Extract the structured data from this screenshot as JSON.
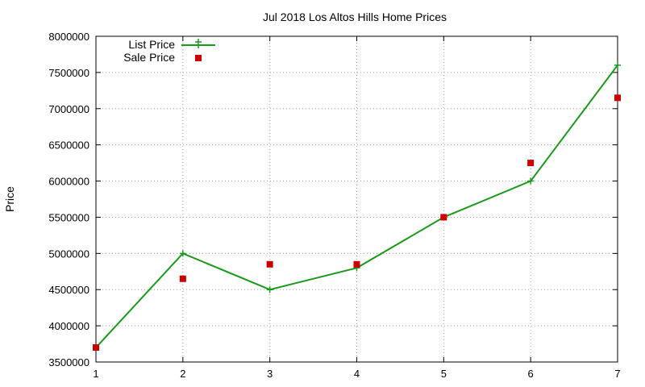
{
  "chart_data": {
    "type": "line",
    "title": "Jul 2018 Los Altos Hills Home Prices",
    "xlabel": "",
    "ylabel": "Price",
    "x": [
      1,
      2,
      3,
      4,
      5,
      6,
      7
    ],
    "xlim": [
      1,
      7
    ],
    "ylim": [
      3500000,
      8000000
    ],
    "xticks": [
      "1",
      "2",
      "3",
      "4",
      "5",
      "6",
      "7"
    ],
    "yticks": [
      "3500000",
      "4000000",
      "4500000",
      "5000000",
      "5500000",
      "6000000",
      "6500000",
      "7000000",
      "7500000",
      "8000000"
    ],
    "grid": true,
    "legend_position": "top-left",
    "series": [
      {
        "name": "List Price",
        "style": "line-with-plus-markers",
        "color": "#1a9a1a",
        "values": [
          3700000,
          5000000,
          4500000,
          4800000,
          5500000,
          6000000,
          7600000
        ]
      },
      {
        "name": "Sale Price",
        "style": "square-markers",
        "color": "#cc0000",
        "values": [
          3700000,
          4650000,
          4850000,
          4850000,
          5500000,
          6250000,
          7150000
        ]
      }
    ]
  }
}
